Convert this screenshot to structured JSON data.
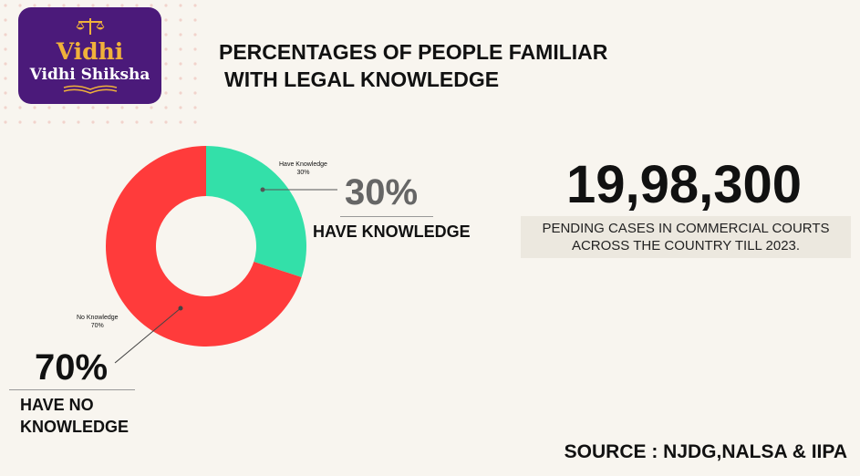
{
  "logo": {
    "brand_top": "Vidhi",
    "brand_bottom": "Vidhi Shiksha"
  },
  "title": {
    "line1": "PERCENTAGES OF PEOPLE FAMILIAR",
    "line2": "WITH LEGAL KNOWLEDGE"
  },
  "chart_data": {
    "type": "pie",
    "style": "donut",
    "categories": [
      "Have Knowledge",
      "No Knowledge"
    ],
    "values": [
      30,
      70
    ],
    "value_labels": [
      "30%",
      "70%"
    ],
    "colors": [
      "#33e0a9",
      "#ff3b3b"
    ]
  },
  "annotations": {
    "have": {
      "pct": "30%",
      "text": "HAVE  KNOWLEDGE"
    },
    "no": {
      "pct": "70%",
      "line1": "HAVE NO",
      "line2": "KNOWLEDGE"
    }
  },
  "stat": {
    "number": "19,98,300",
    "caption_line1": "PENDING CASES IN COMMERCIAL COURTS",
    "caption_line2": "ACROSS THE COUNTRY TILL 2023."
  },
  "source": "SOURCE : NJDG,NALSA & IIPA",
  "colors": {
    "background": "#f8f5ef",
    "logo_bg": "#4b1a7a",
    "logo_gold": "#f0b13a"
  }
}
